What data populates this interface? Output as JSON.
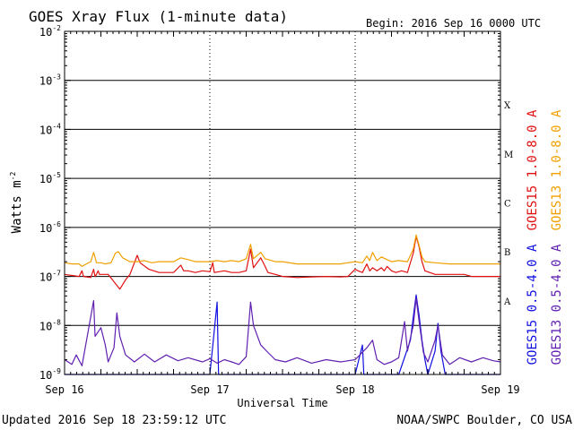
{
  "chart_data": {
    "type": "line",
    "title": "GOES Xray Flux (1-minute data)",
    "begin": "Begin:  2016 Sep 16 0000 UTC",
    "xlabel": "Universal Time",
    "ylabel": "Watts m",
    "ylabel_exp": "-2",
    "y_scale": "log",
    "ylim": [
      1e-09,
      0.01
    ],
    "y_ticks": [
      {
        "base": "10",
        "exp": "-9"
      },
      {
        "base": "10",
        "exp": "-8"
      },
      {
        "base": "10",
        "exp": "-7"
      },
      {
        "base": "10",
        "exp": "-6"
      },
      {
        "base": "10",
        "exp": "-5"
      },
      {
        "base": "10",
        "exp": "-4"
      },
      {
        "base": "10",
        "exp": "-3"
      },
      {
        "base": "10",
        "exp": "-2"
      }
    ],
    "x_ticks": [
      "Sep 16",
      "Sep 17",
      "Sep 18",
      "Sep 19"
    ],
    "flare_classes": [
      "X",
      "M",
      "C",
      "B",
      "A"
    ],
    "grid": true,
    "footer_left": "Updated 2016 Sep 18 23:59:12 UTC",
    "footer_right": "NOAA/SWPC Boulder, CO USA",
    "series": [
      {
        "name": "GOES15 1.0-8.0 A",
        "color": "#e01010",
        "points": [
          [
            0.0,
            1.1e-07
          ],
          [
            0.1,
            1e-07
          ],
          [
            0.12,
            1.3e-07
          ],
          [
            0.13,
            1e-07
          ],
          [
            0.18,
            9.5e-08
          ],
          [
            0.2,
            1.4e-07
          ],
          [
            0.21,
            1e-07
          ],
          [
            0.22,
            1.1e-07
          ],
          [
            0.23,
            1.3e-07
          ],
          [
            0.24,
            1.1e-07
          ],
          [
            0.25,
            1.1e-07
          ],
          [
            0.3,
            1.1e-07
          ],
          [
            0.38,
            5.5e-08
          ],
          [
            0.42,
            8.5e-08
          ],
          [
            0.45,
            1.1e-07
          ],
          [
            0.5,
            2.7e-07
          ],
          [
            0.52,
            1.9e-07
          ],
          [
            0.58,
            1.4e-07
          ],
          [
            0.65,
            1.2e-07
          ],
          [
            0.75,
            1.2e-07
          ],
          [
            0.8,
            1.7e-07
          ],
          [
            0.82,
            1.3e-07
          ],
          [
            0.85,
            1.3e-07
          ],
          [
            0.9,
            1.2e-07
          ],
          [
            0.95,
            1.3e-07
          ],
          [
            1.0,
            1.25e-07
          ],
          [
            1.02,
            1.9e-07
          ],
          [
            1.03,
            1.2e-07
          ],
          [
            1.1,
            1.3e-07
          ],
          [
            1.15,
            1.2e-07
          ],
          [
            1.2,
            1.2e-07
          ],
          [
            1.25,
            1.3e-07
          ],
          [
            1.28,
            3.6e-07
          ],
          [
            1.3,
            1.5e-07
          ],
          [
            1.35,
            2.4e-07
          ],
          [
            1.38,
            1.6e-07
          ],
          [
            1.4,
            1.2e-07
          ],
          [
            1.45,
            1.1e-07
          ],
          [
            1.5,
            1e-07
          ],
          [
            1.6,
            9.5e-08
          ],
          [
            1.7,
            9.8e-08
          ],
          [
            1.8,
            1e-07
          ],
          [
            1.9,
            9.8e-08
          ],
          [
            1.95,
            1e-07
          ],
          [
            2.0,
            1.4e-07
          ],
          [
            2.02,
            1.3e-07
          ],
          [
            2.05,
            1.2e-07
          ],
          [
            2.08,
            1.8e-07
          ],
          [
            2.1,
            1.3e-07
          ],
          [
            2.12,
            1.5e-07
          ],
          [
            2.15,
            1.3e-07
          ],
          [
            2.18,
            1.5e-07
          ],
          [
            2.2,
            1.3e-07
          ],
          [
            2.22,
            1.6e-07
          ],
          [
            2.25,
            1.3e-07
          ],
          [
            2.28,
            1.2e-07
          ],
          [
            2.32,
            1.3e-07
          ],
          [
            2.36,
            1.2e-07
          ],
          [
            2.4,
            3e-07
          ],
          [
            2.42,
            6.5e-07
          ],
          [
            2.44,
            4e-07
          ],
          [
            2.46,
            2e-07
          ],
          [
            2.48,
            1.3e-07
          ],
          [
            2.55,
            1.1e-07
          ],
          [
            2.65,
            1.1e-07
          ],
          [
            2.75,
            1.1e-07
          ],
          [
            2.8,
            1e-07
          ],
          [
            2.9,
            1e-07
          ],
          [
            3.0,
            1e-07
          ]
        ]
      },
      {
        "name": "GOES13 1.0-8.0 A",
        "color": "#f0a000",
        "points": [
          [
            0.0,
            1.9e-07
          ],
          [
            0.05,
            1.8e-07
          ],
          [
            0.1,
            1.8e-07
          ],
          [
            0.12,
            1.6e-07
          ],
          [
            0.15,
            1.8e-07
          ],
          [
            0.18,
            2e-07
          ],
          [
            0.2,
            3.1e-07
          ],
          [
            0.22,
            1.9e-07
          ],
          [
            0.25,
            1.9e-07
          ],
          [
            0.28,
            1.8e-07
          ],
          [
            0.32,
            1.9e-07
          ],
          [
            0.35,
            3e-07
          ],
          [
            0.37,
            3.2e-07
          ],
          [
            0.4,
            2.4e-07
          ],
          [
            0.45,
            2e-07
          ],
          [
            0.5,
            2e-07
          ],
          [
            0.55,
            2.1e-07
          ],
          [
            0.6,
            1.9e-07
          ],
          [
            0.65,
            2e-07
          ],
          [
            0.7,
            2e-07
          ],
          [
            0.75,
            2e-07
          ],
          [
            0.8,
            2.4e-07
          ],
          [
            0.85,
            2.2e-07
          ],
          [
            0.9,
            2e-07
          ],
          [
            1.0,
            2e-07
          ],
          [
            1.05,
            2.1e-07
          ],
          [
            1.1,
            2e-07
          ],
          [
            1.15,
            2.1e-07
          ],
          [
            1.2,
            2e-07
          ],
          [
            1.25,
            2.3e-07
          ],
          [
            1.28,
            4.5e-07
          ],
          [
            1.3,
            2.3e-07
          ],
          [
            1.35,
            3.1e-07
          ],
          [
            1.38,
            2.3e-07
          ],
          [
            1.45,
            2e-07
          ],
          [
            1.5,
            2e-07
          ],
          [
            1.6,
            1.8e-07
          ],
          [
            1.7,
            1.8e-07
          ],
          [
            1.8,
            1.8e-07
          ],
          [
            1.9,
            1.8e-07
          ],
          [
            1.95,
            1.9e-07
          ],
          [
            2.0,
            2e-07
          ],
          [
            2.05,
            1.9e-07
          ],
          [
            2.08,
            2.6e-07
          ],
          [
            2.1,
            2.1e-07
          ],
          [
            2.12,
            3.1e-07
          ],
          [
            2.15,
            2.1e-07
          ],
          [
            2.18,
            2.5e-07
          ],
          [
            2.22,
            2.2e-07
          ],
          [
            2.25,
            2e-07
          ],
          [
            2.3,
            2.1e-07
          ],
          [
            2.36,
            2e-07
          ],
          [
            2.4,
            3.6e-07
          ],
          [
            2.42,
            7e-07
          ],
          [
            2.44,
            4.3e-07
          ],
          [
            2.46,
            2.5e-07
          ],
          [
            2.48,
            2e-07
          ],
          [
            2.55,
            1.9e-07
          ],
          [
            2.65,
            1.8e-07
          ],
          [
            2.75,
            1.8e-07
          ],
          [
            2.85,
            1.8e-07
          ],
          [
            2.95,
            1.8e-07
          ],
          [
            3.0,
            1.8e-07
          ]
        ]
      },
      {
        "name": "GOES15 0.5-4.0 A",
        "color": "#1010e0",
        "points": [
          [
            0.0,
            1e-09
          ],
          [
            1.0,
            1e-09
          ],
          [
            1.05,
            3e-08
          ],
          [
            1.06,
            1e-09
          ],
          [
            2.0,
            1e-09
          ],
          [
            2.05,
            4e-09
          ],
          [
            2.06,
            1e-09
          ],
          [
            2.3,
            1e-09
          ],
          [
            2.38,
            5e-09
          ],
          [
            2.4,
            1.5e-08
          ],
          [
            2.42,
            4.2e-08
          ],
          [
            2.44,
            1.6e-08
          ],
          [
            2.46,
            5e-09
          ],
          [
            2.48,
            2e-09
          ],
          [
            2.5,
            1e-09
          ],
          [
            2.55,
            3e-09
          ],
          [
            2.57,
            1.1e-08
          ],
          [
            2.59,
            3e-09
          ],
          [
            2.62,
            1e-09
          ],
          [
            3.0,
            1e-09
          ]
        ]
      },
      {
        "name": "GOES13 0.5-4.0 A",
        "color": "#6020b0",
        "points": [
          [
            0.0,
            2e-09
          ],
          [
            0.05,
            1.6e-09
          ],
          [
            0.08,
            2.5e-09
          ],
          [
            0.12,
            1.5e-09
          ],
          [
            0.2,
            3.2e-08
          ],
          [
            0.21,
            6e-09
          ],
          [
            0.25,
            9e-09
          ],
          [
            0.28,
            4e-09
          ],
          [
            0.3,
            1.8e-09
          ],
          [
            0.34,
            3.5e-09
          ],
          [
            0.36,
            1.8e-08
          ],
          [
            0.38,
            6e-09
          ],
          [
            0.42,
            2.5e-09
          ],
          [
            0.48,
            1.8e-09
          ],
          [
            0.55,
            2.6e-09
          ],
          [
            0.62,
            1.8e-09
          ],
          [
            0.7,
            2.5e-09
          ],
          [
            0.78,
            1.9e-09
          ],
          [
            0.85,
            2.2e-09
          ],
          [
            0.95,
            1.8e-09
          ],
          [
            1.0,
            2.1e-09
          ],
          [
            1.05,
            1.7e-09
          ],
          [
            1.1,
            2e-09
          ],
          [
            1.15,
            1.8e-09
          ],
          [
            1.2,
            1.6e-09
          ],
          [
            1.25,
            2.3e-09
          ],
          [
            1.28,
            3e-08
          ],
          [
            1.3,
            1e-08
          ],
          [
            1.35,
            4e-09
          ],
          [
            1.4,
            2.8e-09
          ],
          [
            1.45,
            2e-09
          ],
          [
            1.52,
            1.8e-09
          ],
          [
            1.6,
            2.2e-09
          ],
          [
            1.7,
            1.7e-09
          ],
          [
            1.8,
            2e-09
          ],
          [
            1.9,
            1.8e-09
          ],
          [
            2.0,
            2e-09
          ],
          [
            2.08,
            3.5e-09
          ],
          [
            2.12,
            5e-09
          ],
          [
            2.15,
            2e-09
          ],
          [
            2.2,
            1.6e-09
          ],
          [
            2.25,
            1.8e-09
          ],
          [
            2.3,
            2.2e-09
          ],
          [
            2.34,
            1.2e-08
          ],
          [
            2.36,
            3e-09
          ],
          [
            2.4,
            1e-08
          ],
          [
            2.42,
            3.6e-08
          ],
          [
            2.44,
            1.2e-08
          ],
          [
            2.47,
            2.8e-09
          ],
          [
            2.5,
            1.8e-09
          ],
          [
            2.55,
            5e-09
          ],
          [
            2.57,
            1e-08
          ],
          [
            2.6,
            2.5e-09
          ],
          [
            2.65,
            1.6e-09
          ],
          [
            2.72,
            2.2e-09
          ],
          [
            2.8,
            1.8e-09
          ],
          [
            2.88,
            2.2e-09
          ],
          [
            2.95,
            1.9e-09
          ],
          [
            3.0,
            1.8e-09
          ]
        ]
      }
    ]
  }
}
